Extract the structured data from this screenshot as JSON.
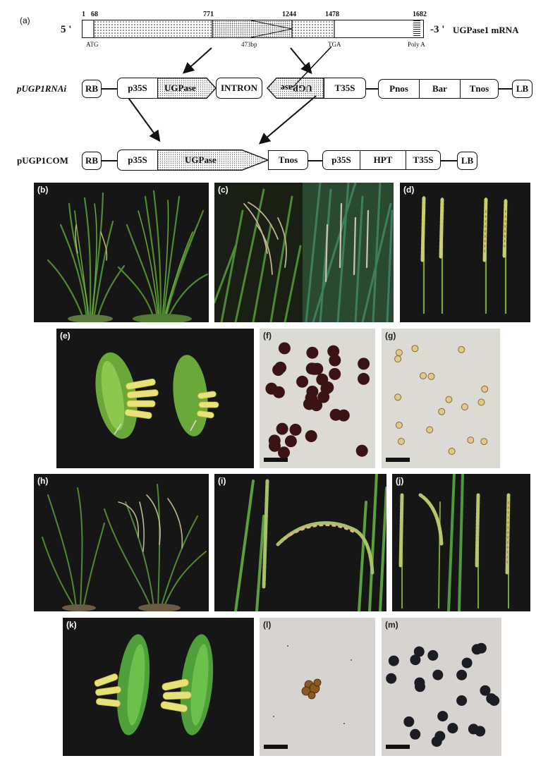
{
  "construct": {
    "panel_label": "(a)",
    "mrna": {
      "five_prime": "5 '",
      "three_prime": "-3 '",
      "name": "UGPase1 mRNA",
      "positions": [
        "1",
        "68",
        "771",
        "1244",
        "1478",
        "1682"
      ],
      "bottom_labels": {
        "start": "ATG",
        "intron_size": "473bp",
        "stop": "TGA",
        "polya": "Poly A"
      }
    },
    "rnai": {
      "name": "pUGP1RNAi",
      "rb": "RB",
      "p35s": "p35S",
      "ugpase": "UGPase",
      "intron": "INTRON",
      "ugpase_rev": "UGPase",
      "t35s": "T35S",
      "pnos": "Pnos",
      "bar": "Bar",
      "tnos": "Tnos",
      "lb": "LB"
    },
    "com": {
      "name": "pUGP1COM",
      "rb": "RB",
      "p35s": "p35S",
      "ugpase": "UGPase",
      "tnos": "Tnos",
      "p35s2": "p35S",
      "hpt": "HPT",
      "t35s": "T35S",
      "lb": "LB"
    }
  },
  "photo_panels": [
    {
      "label": "(b)",
      "subject": "rice-plants"
    },
    {
      "label": "(c)",
      "subject": "panicles-closeup"
    },
    {
      "label": "(d)",
      "subject": "panicles"
    },
    {
      "label": "(e)",
      "subject": "spikelets-anthers"
    },
    {
      "label": "(f)",
      "subject": "pollen-stained"
    },
    {
      "label": "(g)",
      "subject": "pollen-sterile"
    },
    {
      "label": "(h)",
      "subject": "rice-plants"
    },
    {
      "label": "(i)",
      "subject": "panicles-closeup"
    },
    {
      "label": "(j)",
      "subject": "panicles"
    },
    {
      "label": "(k)",
      "subject": "spikelets-anthers"
    },
    {
      "label": "(l)",
      "subject": "pollen-sterile"
    },
    {
      "label": "(m)",
      "subject": "pollen-stained"
    }
  ],
  "colors": {
    "accent_green": "#5fa23a",
    "pollen_dark": "#3a1414",
    "panel_bg": "#161616"
  }
}
